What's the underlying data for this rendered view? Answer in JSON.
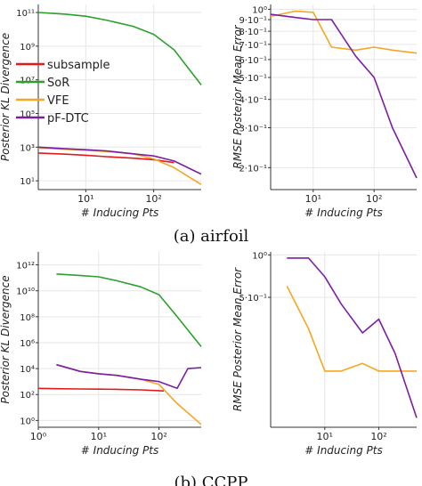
{
  "captions": {
    "a": "(a) airfoil",
    "b": "(b) CCPP"
  },
  "colors": {
    "subsample": "#e31a1c",
    "SoR": "#2ca02c",
    "VFE": "#f5a623",
    "pF-DTC": "#7b1fa2",
    "axis": "#333333",
    "grid": "#e6e6e6"
  },
  "chart_data": [
    {
      "id": "airfoil-kl",
      "type": "line",
      "log_x": true,
      "log_y": true,
      "xlim": [
        2,
        500
      ],
      "ylim": [
        3,
        300000000000
      ],
      "xlabel": "# Inducing Pts",
      "ylabel": "Posterior KL Divergence",
      "x_ticks": [
        {
          "v": 10,
          "t": "10¹"
        },
        {
          "v": 100,
          "t": "10²"
        }
      ],
      "y_ticks": [
        {
          "v": 10,
          "t": "10¹"
        },
        {
          "v": 1000,
          "t": "10³"
        },
        {
          "v": 100000,
          "t": "10⁵"
        },
        {
          "v": 10000000,
          "t": "10⁷"
        },
        {
          "v": 1000000000,
          "t": "10⁹"
        },
        {
          "v": 100000000000,
          "t": "10¹¹"
        }
      ],
      "legend": {
        "position": "left",
        "entries": [
          "subsample",
          "SoR",
          "VFE",
          "pF-DTC"
        ]
      },
      "series": [
        {
          "name": "subsample",
          "x": [
            2,
            5,
            10,
            20,
            50,
            100,
            200
          ],
          "y": [
            450,
            380,
            330,
            270,
            220,
            180,
            120
          ]
        },
        {
          "name": "SoR",
          "x": [
            2,
            5,
            10,
            20,
            50,
            100,
            200,
            500
          ],
          "y": [
            100000000000,
            80000000000,
            60000000000,
            35000000000,
            15000000000,
            5000000000,
            600000000,
            5000000
          ]
        },
        {
          "name": "VFE",
          "x": [
            2,
            5,
            10,
            20,
            50,
            100,
            200,
            500
          ],
          "y": [
            900,
            750,
            650,
            550,
            400,
            200,
            60,
            6
          ]
        },
        {
          "name": "pF-DTC",
          "x": [
            2,
            5,
            10,
            20,
            50,
            100,
            200,
            500
          ],
          "y": [
            1000,
            800,
            700,
            600,
            400,
            300,
            150,
            25
          ]
        }
      ]
    },
    {
      "id": "airfoil-rmse",
      "type": "line",
      "log_x": true,
      "log_y": true,
      "xlim": [
        2,
        500
      ],
      "ylim": [
        0.16,
        1.05
      ],
      "xlabel": "# Inducing Pts",
      "ylabel": "RMSE Posterior Mean Error",
      "x_ticks": [
        {
          "v": 10,
          "t": "10¹"
        },
        {
          "v": 100,
          "t": "10²"
        }
      ],
      "y_ticks": [
        {
          "v": 1,
          "t": "10⁰"
        },
        {
          "v": 0.9,
          "t": "9·10⁻¹"
        },
        {
          "v": 0.8,
          "t": "8·10⁻¹"
        },
        {
          "v": 0.7,
          "t": "7·10⁻¹"
        },
        {
          "v": 0.6,
          "t": "6·10⁻¹"
        },
        {
          "v": 0.5,
          "t": "5·10⁻¹"
        },
        {
          "v": 0.4,
          "t": "4·10⁻¹"
        },
        {
          "v": 0.3,
          "t": "3·10⁻¹"
        },
        {
          "v": 0.2,
          "t": "2·10⁻¹"
        }
      ],
      "series": [
        {
          "name": "VFE",
          "x": [
            2,
            5,
            10,
            20,
            50,
            100,
            200,
            500
          ],
          "y": [
            0.93,
            0.98,
            0.97,
            0.68,
            0.66,
            0.68,
            0.66,
            0.64
          ]
        },
        {
          "name": "pF-DTC",
          "x": [
            2,
            5,
            10,
            20,
            50,
            100,
            200,
            500
          ],
          "y": [
            0.95,
            0.92,
            0.9,
            0.9,
            0.62,
            0.5,
            0.3,
            0.18
          ]
        }
      ]
    },
    {
      "id": "ccpp-kl",
      "type": "line",
      "log_x": true,
      "log_y": true,
      "xlim": [
        1,
        500
      ],
      "ylim": [
        0.3,
        10000000000000
      ],
      "xlabel": "# Inducing Pts",
      "ylabel": "Posterior KL Divergence",
      "x_ticks": [
        {
          "v": 1,
          "t": "10⁰"
        },
        {
          "v": 10,
          "t": "10¹"
        },
        {
          "v": 100,
          "t": "10²"
        }
      ],
      "y_ticks": [
        {
          "v": 1,
          "t": "10⁰"
        },
        {
          "v": 100,
          "t": "10²"
        },
        {
          "v": 10000,
          "t": "10⁴"
        },
        {
          "v": 1000000,
          "t": "10⁶"
        },
        {
          "v": 100000000,
          "t": "10⁸"
        },
        {
          "v": 10000000000,
          "t": "10¹⁰"
        },
        {
          "v": 1000000000000,
          "t": "10¹²"
        }
      ],
      "series": [
        {
          "name": "subsample",
          "x": [
            1,
            2,
            5,
            10,
            20,
            50,
            100,
            120
          ],
          "y": [
            300,
            280,
            270,
            260,
            250,
            230,
            200,
            190
          ]
        },
        {
          "name": "SoR",
          "x": [
            2,
            5,
            10,
            20,
            50,
            100,
            200,
            500
          ],
          "y": [
            200000000000,
            150000000000,
            120000000000,
            60000000000,
            20000000000,
            5000000000,
            100000000,
            500000
          ]
        },
        {
          "name": "VFE",
          "x": [
            2,
            5,
            10,
            20,
            50,
            100,
            200,
            500
          ],
          "y": [
            20000,
            6000,
            4000,
            3000,
            1500,
            600,
            20,
            0.5
          ]
        },
        {
          "name": "pF-DTC",
          "x": [
            2,
            5,
            10,
            20,
            50,
            100,
            200,
            300,
            500
          ],
          "y": [
            20000,
            6000,
            4000,
            3000,
            1500,
            1000,
            300,
            10000,
            12000
          ]
        }
      ]
    },
    {
      "id": "ccpp-rmse",
      "type": "line",
      "log_x": true,
      "log_y": true,
      "xlim": [
        1,
        500
      ],
      "ylim": [
        0.06,
        1.05
      ],
      "xlabel": "# Inducing Pts",
      "ylabel": "RMSE Posterior Mean Error",
      "x_ticks": [
        {
          "v": 10,
          "t": "10¹"
        },
        {
          "v": 100,
          "t": "10²"
        }
      ],
      "y_ticks": [
        {
          "v": 1,
          "t": "10⁰"
        },
        {
          "v": 0.5,
          "t": "5·10⁻¹"
        }
      ],
      "series": [
        {
          "name": "VFE",
          "x": [
            2,
            5,
            10,
            20,
            50,
            100,
            200,
            500
          ],
          "y": [
            0.6,
            0.3,
            0.15,
            0.15,
            0.17,
            0.15,
            0.15,
            0.15
          ]
        },
        {
          "name": "pF-DTC",
          "x": [
            2,
            5,
            10,
            20,
            50,
            100,
            200,
            500
          ],
          "y": [
            0.95,
            0.95,
            0.7,
            0.45,
            0.28,
            0.35,
            0.2,
            0.07
          ]
        }
      ]
    }
  ]
}
